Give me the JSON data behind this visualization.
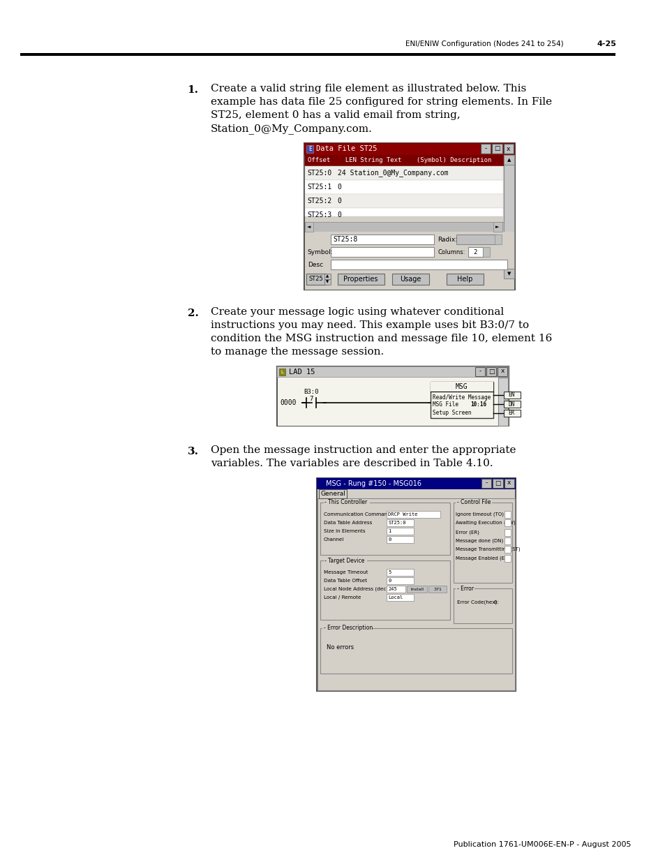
{
  "bg_color": "#ffffff",
  "header_text": "ENI/ENIW Configuration (Nodes 241 to 254)",
  "header_page": "4-25",
  "footer_text": "Publication 1761-UM006E-EN-P - August 2005",
  "step1_num": "1.",
  "step1_lines": [
    "Create a valid string file element as illustrated below. This",
    "example has data file 25 configured for string elements. In File",
    "ST25, element 0 has a valid email from string,",
    "Station_0@My_Company.com."
  ],
  "step2_num": "2.",
  "step2_lines": [
    "Create your message logic using whatever conditional",
    "instructions you may need. This example uses bit B3:0/7 to",
    "condition the MSG instruction and message file 10, element 16",
    "to manage the message session."
  ],
  "step3_num": "3.",
  "step3_lines": [
    "Open the message instruction and enter the appropriate",
    "variables. The variables are described in Table 4.10."
  ],
  "s1_title": "Data File ST25",
  "s1_rows": [
    [
      "ST25:0",
      "24 Station_0@My_Company.com"
    ],
    [
      "ST25:1",
      "0"
    ],
    [
      "ST25:2",
      "0"
    ],
    [
      "ST25:3",
      "0"
    ]
  ],
  "s2_title": "LAD 15",
  "s3_title": "MSG - Rung #150 - MSG016",
  "dark_red": "#8b0000",
  "mid_gray": "#c0c0c0",
  "light_gray": "#d4d0c8",
  "white": "#ffffff",
  "navy": "#000080",
  "row_bg1": "#f0eeea",
  "row_bg2": "#ffffff"
}
